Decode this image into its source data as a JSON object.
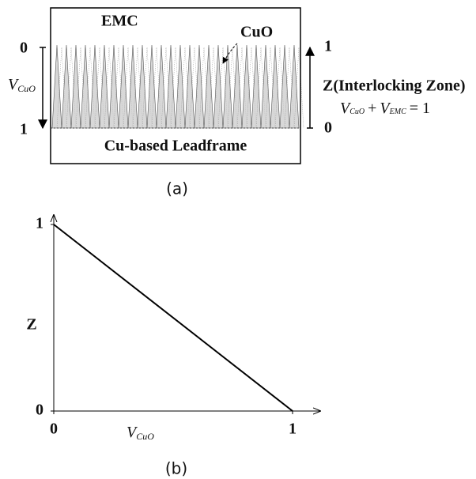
{
  "panel_a": {
    "top_label": "EMC",
    "oxide_label": "CuO",
    "left_scale": {
      "top": "0",
      "bottom": "1",
      "label": {
        "base": "V",
        "sub": "CuO"
      }
    },
    "right_scale": {
      "top": "1",
      "bottom": "0",
      "label": "Z(Interlocking Zone)"
    },
    "equation": [
      "V",
      "CuO",
      "+",
      "V",
      "EMC",
      "= 1"
    ],
    "bottom_label": "Cu-based Leadframe",
    "caption": "(a)"
  },
  "panel_b": {
    "type": "line",
    "x": [
      0,
      1
    ],
    "values": [
      1,
      0
    ],
    "xlim": [
      0,
      1
    ],
    "ylim": [
      0,
      1
    ],
    "xticks": [
      0,
      1
    ],
    "yticks": [
      0,
      1
    ],
    "xlabel": {
      "base": "V",
      "sub": "CuO"
    },
    "ylabel": "Z",
    "color": "#000000",
    "caption": "(b)"
  }
}
